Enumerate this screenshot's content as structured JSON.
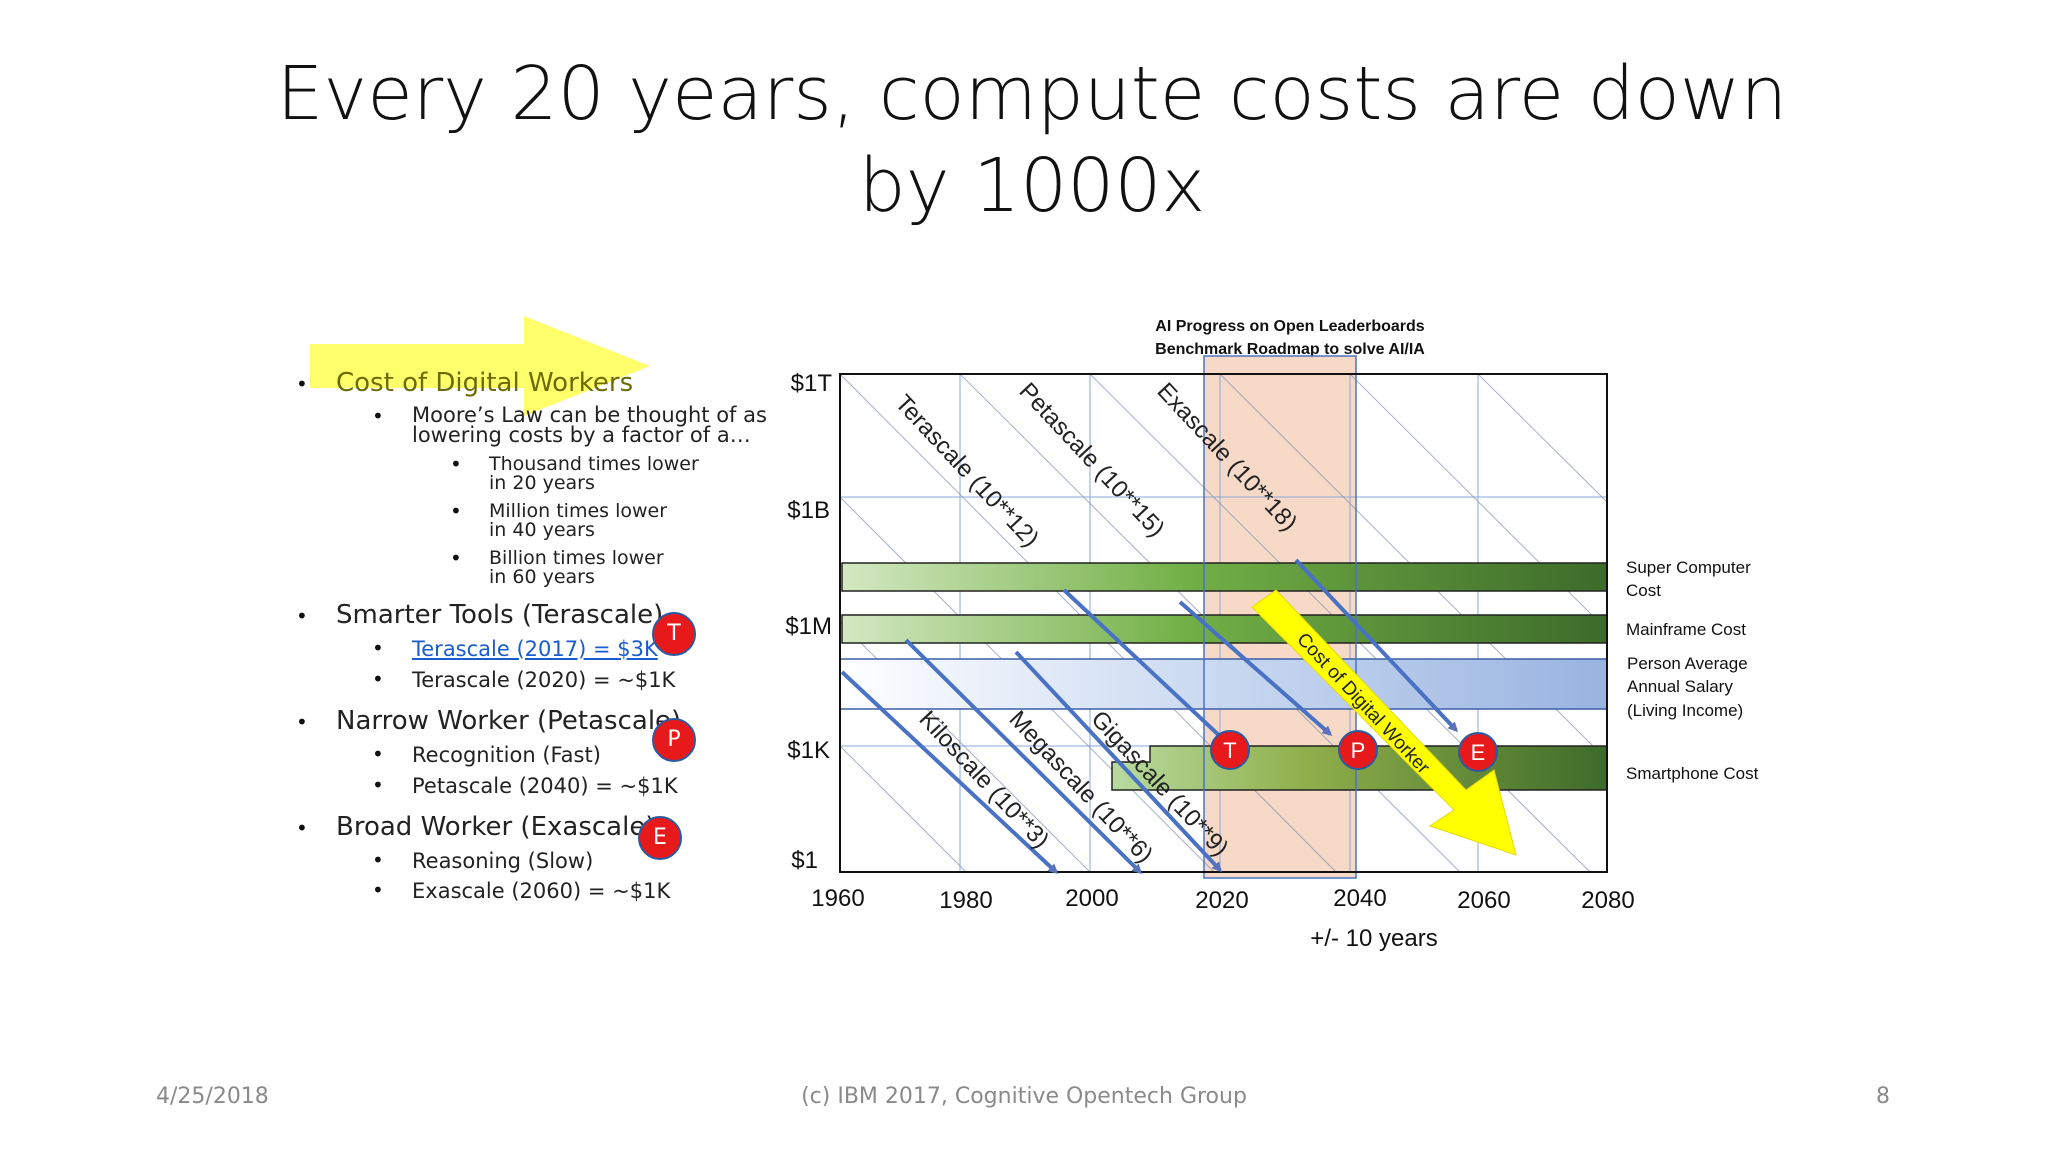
{
  "slide": {
    "title_line1": "Every 20 years, compute costs are down",
    "title_line2": "by 1000x",
    "footer": {
      "date": "4/25/2018",
      "center": "(c) IBM 2017, Cognitive Opentech Group",
      "page": "8"
    }
  },
  "bullets": {
    "cost": "Cost of Digital Workers",
    "moore_line1": "Moore’s Law can be thought of as",
    "moore_line2": "lowering costs by a factor of a…",
    "thousand_1": "Thousand times lower",
    "thousand_2": "in 20 years",
    "million_1": "Million times lower",
    "million_2": "in 40 years",
    "billion_1": "Billion times lower",
    "billion_2": "in 60 years",
    "smarter": "Smarter Tools (Terascale)",
    "tera2017": "Terascale (2017) = $3K",
    "tera2020": "Terascale (2020) = ~$1K",
    "narrow": "Narrow Worker (Petascale)",
    "recognition": "Recognition (Fast)",
    "peta2040": "Petascale (2040) =  ~$1K",
    "broad": "Broad Worker (Exascale)",
    "reasoning": "Reasoning (Slow)",
    "exa2060": "Exascale (2060) = ~$1K",
    "badge_t": "T",
    "badge_p": "P",
    "badge_e": "E"
  },
  "colors": {
    "green_dark": "#3d6b2a",
    "green_light": "#c8e0b0",
    "arrow_blue": "#4a72c4",
    "grid_blue": "#8aa8d8",
    "band_orange": "#f5d6c4",
    "badge_red": "#e8191a",
    "arrow_yellow": "#ffff00"
  },
  "chart_data": {
    "type": "diagram",
    "title_line1": "AI Progress on Open Leaderboards",
    "title_line2": "Benchmark Roadmap to solve AI/IA",
    "x_ticks": [
      "1960",
      "1980",
      "2000",
      "2020",
      "2040",
      "2060",
      "2080"
    ],
    "y_ticks": [
      "$1T",
      "$1B",
      "$1M",
      "$1K",
      "$1"
    ],
    "xlabel": "+/- 10 years",
    "highlight_band": {
      "from": 2017,
      "to": 2040
    },
    "scale_lines": [
      {
        "label": "Terascale (10**12)",
        "start_year": 1960,
        "end_year": 2020,
        "end_value": "$1K"
      },
      {
        "label": "Petascale (10**15)",
        "start_year": 1988,
        "end_year": 2040,
        "end_value": "$1K"
      },
      {
        "label": "Exascale (10**18)",
        "start_year": 2014,
        "end_year": 2060,
        "end_value": "$1K"
      },
      {
        "label": "Kiloscale (10**3)",
        "start_year": 1960,
        "end_year": 1995,
        "end_value": "$1"
      },
      {
        "label": "Megascale (10**6)",
        "start_year": 1980,
        "end_year": 2008,
        "end_value": "$1"
      },
      {
        "label": "Gigascale (10**9)",
        "start_year": 2000,
        "end_year": 2020,
        "end_value": "$1"
      }
    ],
    "cost_bars": [
      {
        "label_line1": "Super Computer",
        "label_line2": "Cost",
        "from": 1960,
        "to": 2080,
        "value": "$1M-$1B"
      },
      {
        "label_line1": "Mainframe Cost",
        "label_line2": "",
        "from": 1960,
        "to": 2080,
        "value": "$1M"
      },
      {
        "label_line1": "Person Average",
        "label_line2": "Annual Salary",
        "label_line3": "(Living Income)",
        "from": 1960,
        "to": 2080,
        "value": "$10K-$100K"
      },
      {
        "label_line1": "Smartphone Cost",
        "label_line2": "",
        "from": 2003,
        "to": 2080,
        "value": "$1K"
      }
    ],
    "markers": [
      {
        "label": "T",
        "year": 2020
      },
      {
        "label": "P",
        "year": 2040
      },
      {
        "label": "E",
        "year": 2060
      }
    ],
    "yellow_arrow_label": "Cost of Digital Worker"
  }
}
